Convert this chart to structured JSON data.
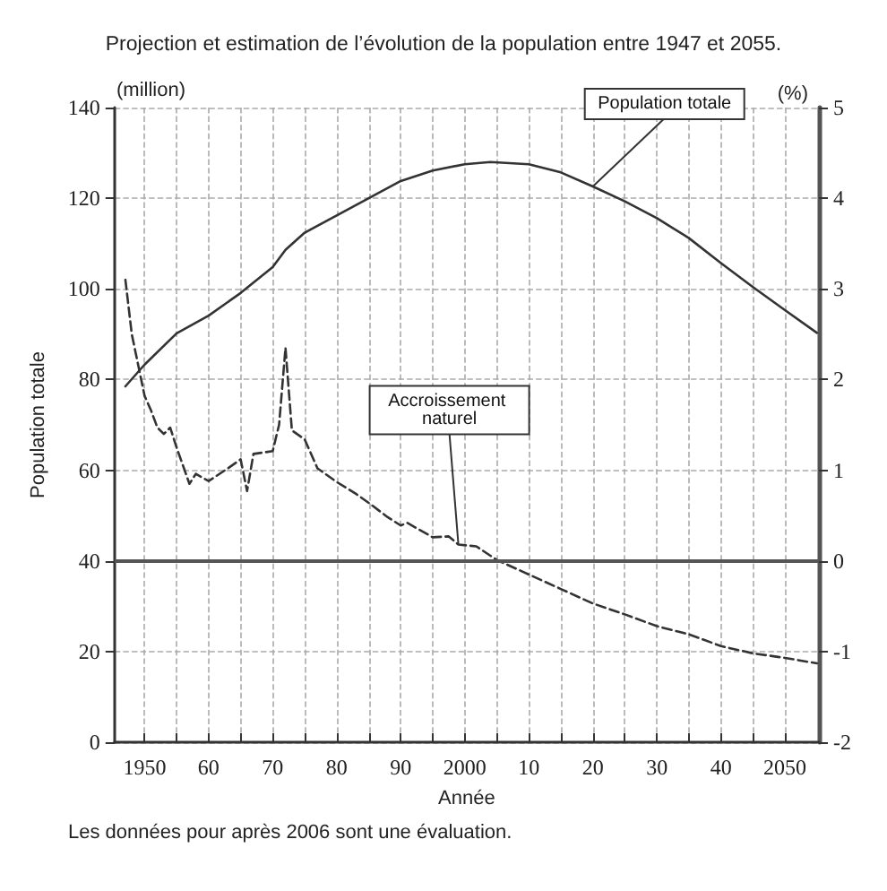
{
  "chart_data": {
    "type": "line",
    "title": "Projection et estimation de l’évolution de la population entre 1947 et 2055.",
    "xlabel": "Année",
    "ylabel": "Population totale",
    "y2label": "(%)",
    "xlim": [
      1945.3,
      2055.3
    ],
    "ylim": [
      0,
      140
    ],
    "y2lim": [
      -2,
      5
    ],
    "xticks": [
      {
        "value": 1950,
        "label": "1950"
      },
      {
        "value": 1955,
        "label": null
      },
      {
        "value": 1960,
        "label": "60"
      },
      {
        "value": 1965,
        "label": null
      },
      {
        "value": 1970,
        "label": "70"
      },
      {
        "value": 1975,
        "label": null
      },
      {
        "value": 1980,
        "label": "80"
      },
      {
        "value": 1985,
        "label": null
      },
      {
        "value": 1990,
        "label": "90"
      },
      {
        "value": 1995,
        "label": null
      },
      {
        "value": 2000,
        "label": "2000"
      },
      {
        "value": 2005,
        "label": null
      },
      {
        "value": 2010,
        "label": "10"
      },
      {
        "value": 2015,
        "label": null
      },
      {
        "value": 2020,
        "label": "20"
      },
      {
        "value": 2025,
        "label": null
      },
      {
        "value": 2030,
        "label": "30"
      },
      {
        "value": 2035,
        "label": null
      },
      {
        "value": 2040,
        "label": "40"
      },
      {
        "value": 2045,
        "label": null
      },
      {
        "value": 2050,
        "label": "2050"
      }
    ],
    "yticks": [
      0,
      20,
      40,
      60,
      80,
      100,
      120,
      140
    ],
    "y2ticks": [
      -2,
      -1,
      0,
      1,
      2,
      3,
      4,
      5
    ],
    "grid": true,
    "marker": "none",
    "series": [
      {
        "color": "#333333",
        "line_style": "solid",
        "x": [
          1947,
          1950,
          1955,
          1960,
          1965,
          1970,
          1972,
          1975,
          1980,
          1985,
          1990,
          1995,
          2000,
          2004,
          2010,
          2015,
          2020,
          2025,
          2030,
          2035,
          2040,
          2045,
          2050,
          2055
        ],
        "values": [
          78.5,
          83.3,
          90.2,
          94.1,
          99.1,
          104.8,
          108.6,
          112.4,
          116.2,
          120,
          123.8,
          126.1,
          127.5,
          128,
          127.5,
          125.7,
          122.6,
          119.3,
          115.6,
          111.2,
          105.7,
          100.4,
          95.3,
          90.3
        ]
      },
      {
        "color": "#333333",
        "line_style": "dashed",
        "axis": "y2",
        "x": [
          1947,
          1948,
          1949,
          1950,
          1951,
          1952,
          1953,
          1954,
          1955,
          1957,
          1958,
          1960,
          1963,
          1965,
          1966,
          1967,
          1970,
          1971,
          1972,
          1973,
          1975,
          1977,
          1980,
          1983,
          1985,
          1988,
          1990,
          1991,
          1995,
          1997.5,
          1999,
          2001.8,
          2005,
          2010,
          2015,
          2020,
          2025,
          2030,
          2035,
          2040,
          2045,
          2050,
          2055
        ],
        "values": [
          3.1,
          2.5,
          2.16,
          1.82,
          1.66,
          1.47,
          1.4,
          1.47,
          1.25,
          0.85,
          0.96,
          0.88,
          1.02,
          1.12,
          0.77,
          1.18,
          1.21,
          1.5,
          2.35,
          1.44,
          1.34,
          1.02,
          0.87,
          0.74,
          0.64,
          0.48,
          0.39,
          0.42,
          0.26,
          0.27,
          0.18,
          0.16,
          0.01,
          -0.15,
          -0.31,
          -0.47,
          -0.59,
          -0.72,
          -0.81,
          -0.94,
          -1.02,
          -1.07,
          -1.13
        ]
      }
    ],
    "ref_lines": [
      {
        "axis": "y2",
        "value": 0,
        "color": "#555555",
        "line_style": "solid"
      }
    ],
    "annotations": [
      "(million)",
      {
        "text": "Population totale",
        "x": 2020,
        "y": 122.6
      },
      {
        "text": "Accroissement naturel",
        "x": 1999,
        "y": 43.6
      },
      "Les données pour après 2006 sont une évaluation."
    ]
  }
}
